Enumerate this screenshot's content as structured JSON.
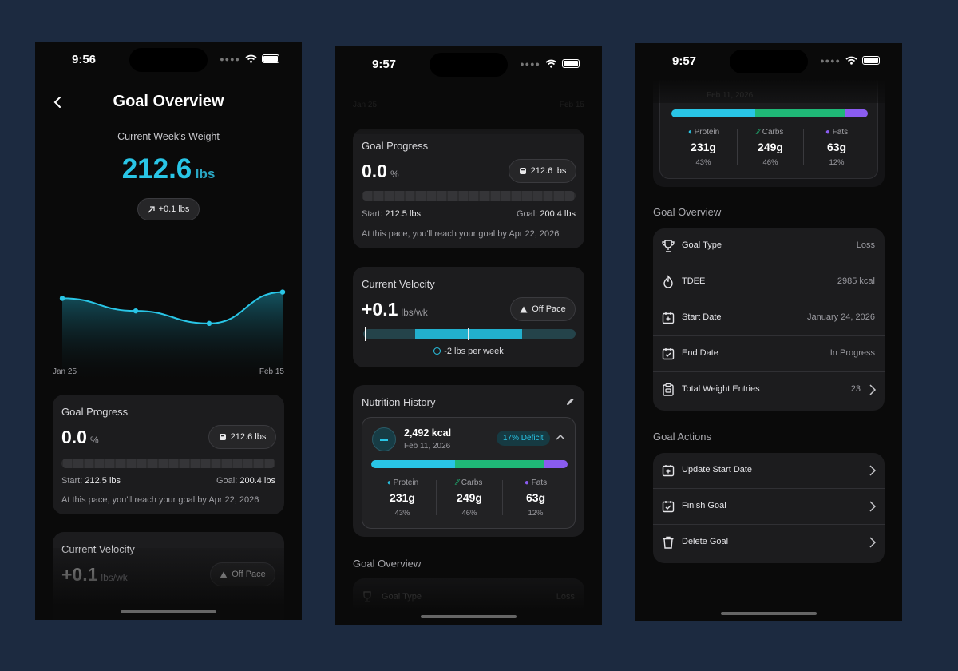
{
  "screen1": {
    "time": "9:56",
    "title": "Goal Overview",
    "current_week_label": "Current Week's Weight",
    "weight_value": "212.6",
    "weight_unit": "lbs",
    "change_badge": "+0.1 lbs",
    "chart_data": {
      "type": "area",
      "x": [
        "Jan 25",
        "",
        "",
        "Feb 15"
      ],
      "values": [
        212.6,
        212.4,
        212.2,
        212.7
      ],
      "xlabel": "",
      "ylabel": "",
      "tick_labels": [
        "Jan 25",
        "Feb 15"
      ],
      "grid": false,
      "line_color": "#29c5e6"
    },
    "goal_progress": {
      "title": "Goal Progress",
      "value": "0.0",
      "unit": "%",
      "current_badge": "212.6 lbs",
      "progress_fraction": 0.0,
      "start_label": "Start:",
      "start_value": "212.5 lbs",
      "goal_label": "Goal:",
      "goal_value": "200.4 lbs",
      "pace_text": "At this pace, you'll reach your goal by Apr 22, 2026"
    },
    "velocity": {
      "title": "Current Velocity",
      "value": "+0.1",
      "unit": "lbs/wk",
      "badge": "Off Pace"
    }
  },
  "screen2": {
    "time": "9:57",
    "axis_start": "Jan 25",
    "axis_end": "Feb 15",
    "goal_progress": {
      "title": "Goal Progress",
      "value": "0.0",
      "unit": "%",
      "current_badge": "212.6 lbs",
      "start_label": "Start:",
      "start_value": "212.5 lbs",
      "goal_label": "Goal:",
      "goal_value": "200.4 lbs",
      "pace_text": "At this pace, you'll reach your goal by Apr 22, 2026"
    },
    "velocity": {
      "title": "Current Velocity",
      "value": "+0.1",
      "unit": "lbs/wk",
      "badge": "Off Pace",
      "target_text": "-2 lbs per week"
    },
    "nutrition": {
      "title": "Nutrition History",
      "kcal": "2,492 kcal",
      "date": "Feb 11, 2026",
      "deficit_badge": "17% Deficit",
      "macros": [
        {
          "name": "Protein",
          "value": "231g",
          "percent": "43%",
          "fraction": 0.43,
          "color": "#29c5e6"
        },
        {
          "name": "Carbs",
          "value": "249g",
          "percent": "46%",
          "fraction": 0.46,
          "color": "#1fb877"
        },
        {
          "name": "Fats",
          "value": "63g",
          "percent": "12%",
          "fraction": 0.12,
          "color": "#8a5cf0"
        }
      ]
    },
    "goal_overview_title": "Goal Overview",
    "goal_type_label": "Goal Type",
    "goal_type_value": "Loss"
  },
  "screen3": {
    "time": "9:57",
    "top_date": "Feb 11, 2026",
    "macros": [
      {
        "name": "Protein",
        "value": "231g",
        "percent": "43%"
      },
      {
        "name": "Carbs",
        "value": "249g",
        "percent": "46%"
      },
      {
        "name": "Fats",
        "value": "63g",
        "percent": "12%"
      }
    ],
    "goal_overview_title": "Goal Overview",
    "overview_rows": [
      {
        "label": "Goal Type",
        "value": "Loss",
        "icon": "trophy-icon"
      },
      {
        "label": "TDEE",
        "value": "2985 kcal",
        "icon": "flame-icon"
      },
      {
        "label": "Start Date",
        "value": "January 24, 2026",
        "icon": "calendar-plus-icon"
      },
      {
        "label": "End Date",
        "value": "In Progress",
        "icon": "calendar-check-icon"
      },
      {
        "label": "Total Weight Entries",
        "value": "23",
        "icon": "clipboard-icon"
      }
    ],
    "goal_actions_title": "Goal Actions",
    "action_rows": [
      {
        "label": "Update Start Date",
        "icon": "calendar-plus-icon"
      },
      {
        "label": "Finish Goal",
        "icon": "calendar-check-icon"
      },
      {
        "label": "Delete Goal",
        "icon": "trash-icon"
      }
    ]
  },
  "colors": {
    "accent": "#29c5e6",
    "protein": "#29c5e6",
    "carbs": "#1fb877",
    "fats": "#8a5cf0",
    "card": "#1c1c1e",
    "background": "#1c2a40"
  }
}
